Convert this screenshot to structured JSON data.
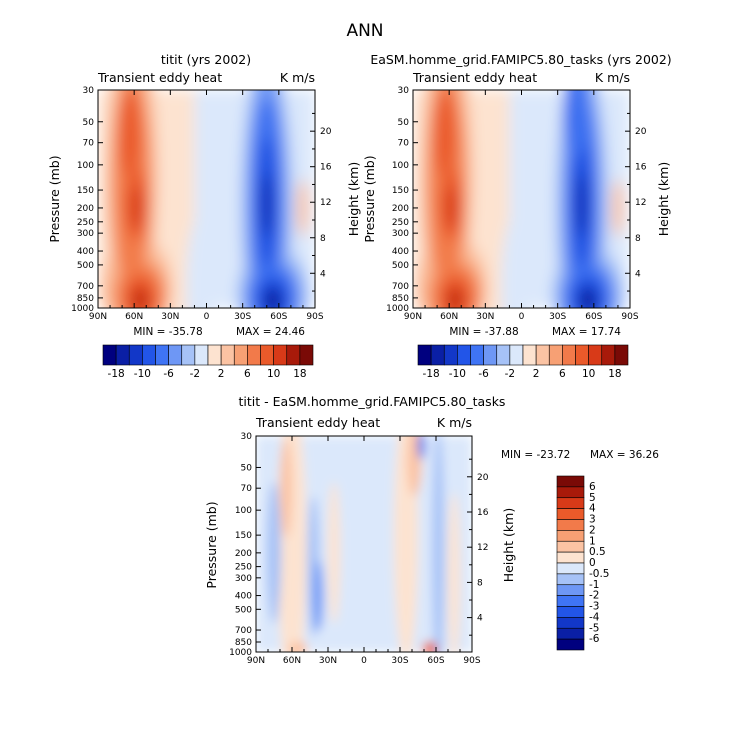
{
  "figure_title": "ANN",
  "chart_data": [
    {
      "type": "heatmap",
      "title": "titit (yrs 2002)",
      "field_label": "Transient eddy heat",
      "units_label": "K m/s",
      "xlabel": "",
      "ylabel": "Pressure (mb)",
      "y2label": "Height (km)",
      "x_ticks": [
        "90N",
        "60N",
        "30N",
        "0",
        "30S",
        "60S",
        "90S"
      ],
      "y_ticks": [
        "30",
        "50",
        "70",
        "100",
        "150",
        "200",
        "250",
        "300",
        "400",
        "500",
        "700",
        "850",
        "1000"
      ],
      "y2_ticks": [
        "20",
        "16",
        "12",
        "8",
        "4"
      ],
      "xlim": [
        90,
        -90
      ],
      "ylim": [
        1000,
        30
      ],
      "min_label": "MIN = -35.78",
      "max_label": "MAX =  24.46",
      "colorbar_labels": [
        "-18",
        "-10",
        "-6",
        "-2",
        "2",
        "6",
        "10",
        "18"
      ],
      "colorbar_levels": [
        -18,
        -14,
        -10,
        -8,
        -6,
        -4,
        -2,
        0,
        2,
        4,
        6,
        8,
        10,
        14,
        18
      ],
      "features": [
        {
          "lat": 60,
          "p": 250,
          "sign": "positive",
          "value": 14
        },
        {
          "lat": 55,
          "p": 850,
          "sign": "positive",
          "value": 24
        },
        {
          "lat": -52,
          "p": 200,
          "sign": "negative",
          "value": -20
        },
        {
          "lat": -52,
          "p": 850,
          "sign": "negative",
          "value": -35
        }
      ]
    },
    {
      "type": "heatmap",
      "title": "EaSM.homme_grid.FAMIPC5.80_tasks (yrs 2002)",
      "field_label": "Transient eddy heat",
      "units_label": "K m/s",
      "xlabel": "",
      "ylabel": "Pressure (mb)",
      "y2label": "Height (km)",
      "x_ticks": [
        "90N",
        "60N",
        "30N",
        "0",
        "30S",
        "60S",
        "90S"
      ],
      "y_ticks": [
        "30",
        "50",
        "70",
        "100",
        "150",
        "200",
        "250",
        "300",
        "400",
        "500",
        "700",
        "850",
        "1000"
      ],
      "y2_ticks": [
        "20",
        "16",
        "12",
        "8",
        "4"
      ],
      "xlim": [
        90,
        -90
      ],
      "ylim": [
        1000,
        30
      ],
      "min_label": "MIN = -37.88",
      "max_label": "MAX =  17.74",
      "colorbar_labels": [
        "-18",
        "-10",
        "-6",
        "-2",
        "2",
        "6",
        "10",
        "18"
      ],
      "colorbar_levels": [
        -18,
        -14,
        -10,
        -8,
        -6,
        -4,
        -2,
        0,
        2,
        4,
        6,
        8,
        10,
        14,
        18
      ],
      "features": [
        {
          "lat": 60,
          "p": 250,
          "sign": "positive",
          "value": 14
        },
        {
          "lat": 55,
          "p": 850,
          "sign": "positive",
          "value": 17
        },
        {
          "lat": -52,
          "p": 200,
          "sign": "negative",
          "value": -22
        },
        {
          "lat": -52,
          "p": 850,
          "sign": "negative",
          "value": -37
        }
      ]
    },
    {
      "type": "heatmap",
      "title": "titit - EaSM.homme_grid.FAMIPC5.80_tasks",
      "field_label": "Transient eddy heat",
      "units_label": "K m/s",
      "xlabel": "",
      "ylabel": "Pressure (mb)",
      "y2label": "Height (km)",
      "x_ticks": [
        "90N",
        "60N",
        "30N",
        "0",
        "30S",
        "60S",
        "90S"
      ],
      "y_ticks": [
        "30",
        "50",
        "70",
        "100",
        "150",
        "200",
        "250",
        "300",
        "400",
        "500",
        "700",
        "850",
        "1000"
      ],
      "y2_ticks": [
        "20",
        "16",
        "12",
        "8",
        "4"
      ],
      "xlim": [
        90,
        -90
      ],
      "ylim": [
        1000,
        30
      ],
      "min_label": "MIN = -23.72",
      "max_label": "MAX =  36.26",
      "colorbar_labels": [
        "6",
        "5",
        "4",
        "3",
        "2",
        "1",
        "0.5",
        "0",
        "-0.5",
        "-1",
        "-2",
        "-3",
        "-4",
        "-5",
        "-6"
      ],
      "colorbar_levels": [
        6,
        5,
        4,
        3,
        2,
        1,
        0.5,
        0,
        -0.5,
        -1,
        -2,
        -3,
        -4,
        -5,
        -6
      ]
    }
  ]
}
